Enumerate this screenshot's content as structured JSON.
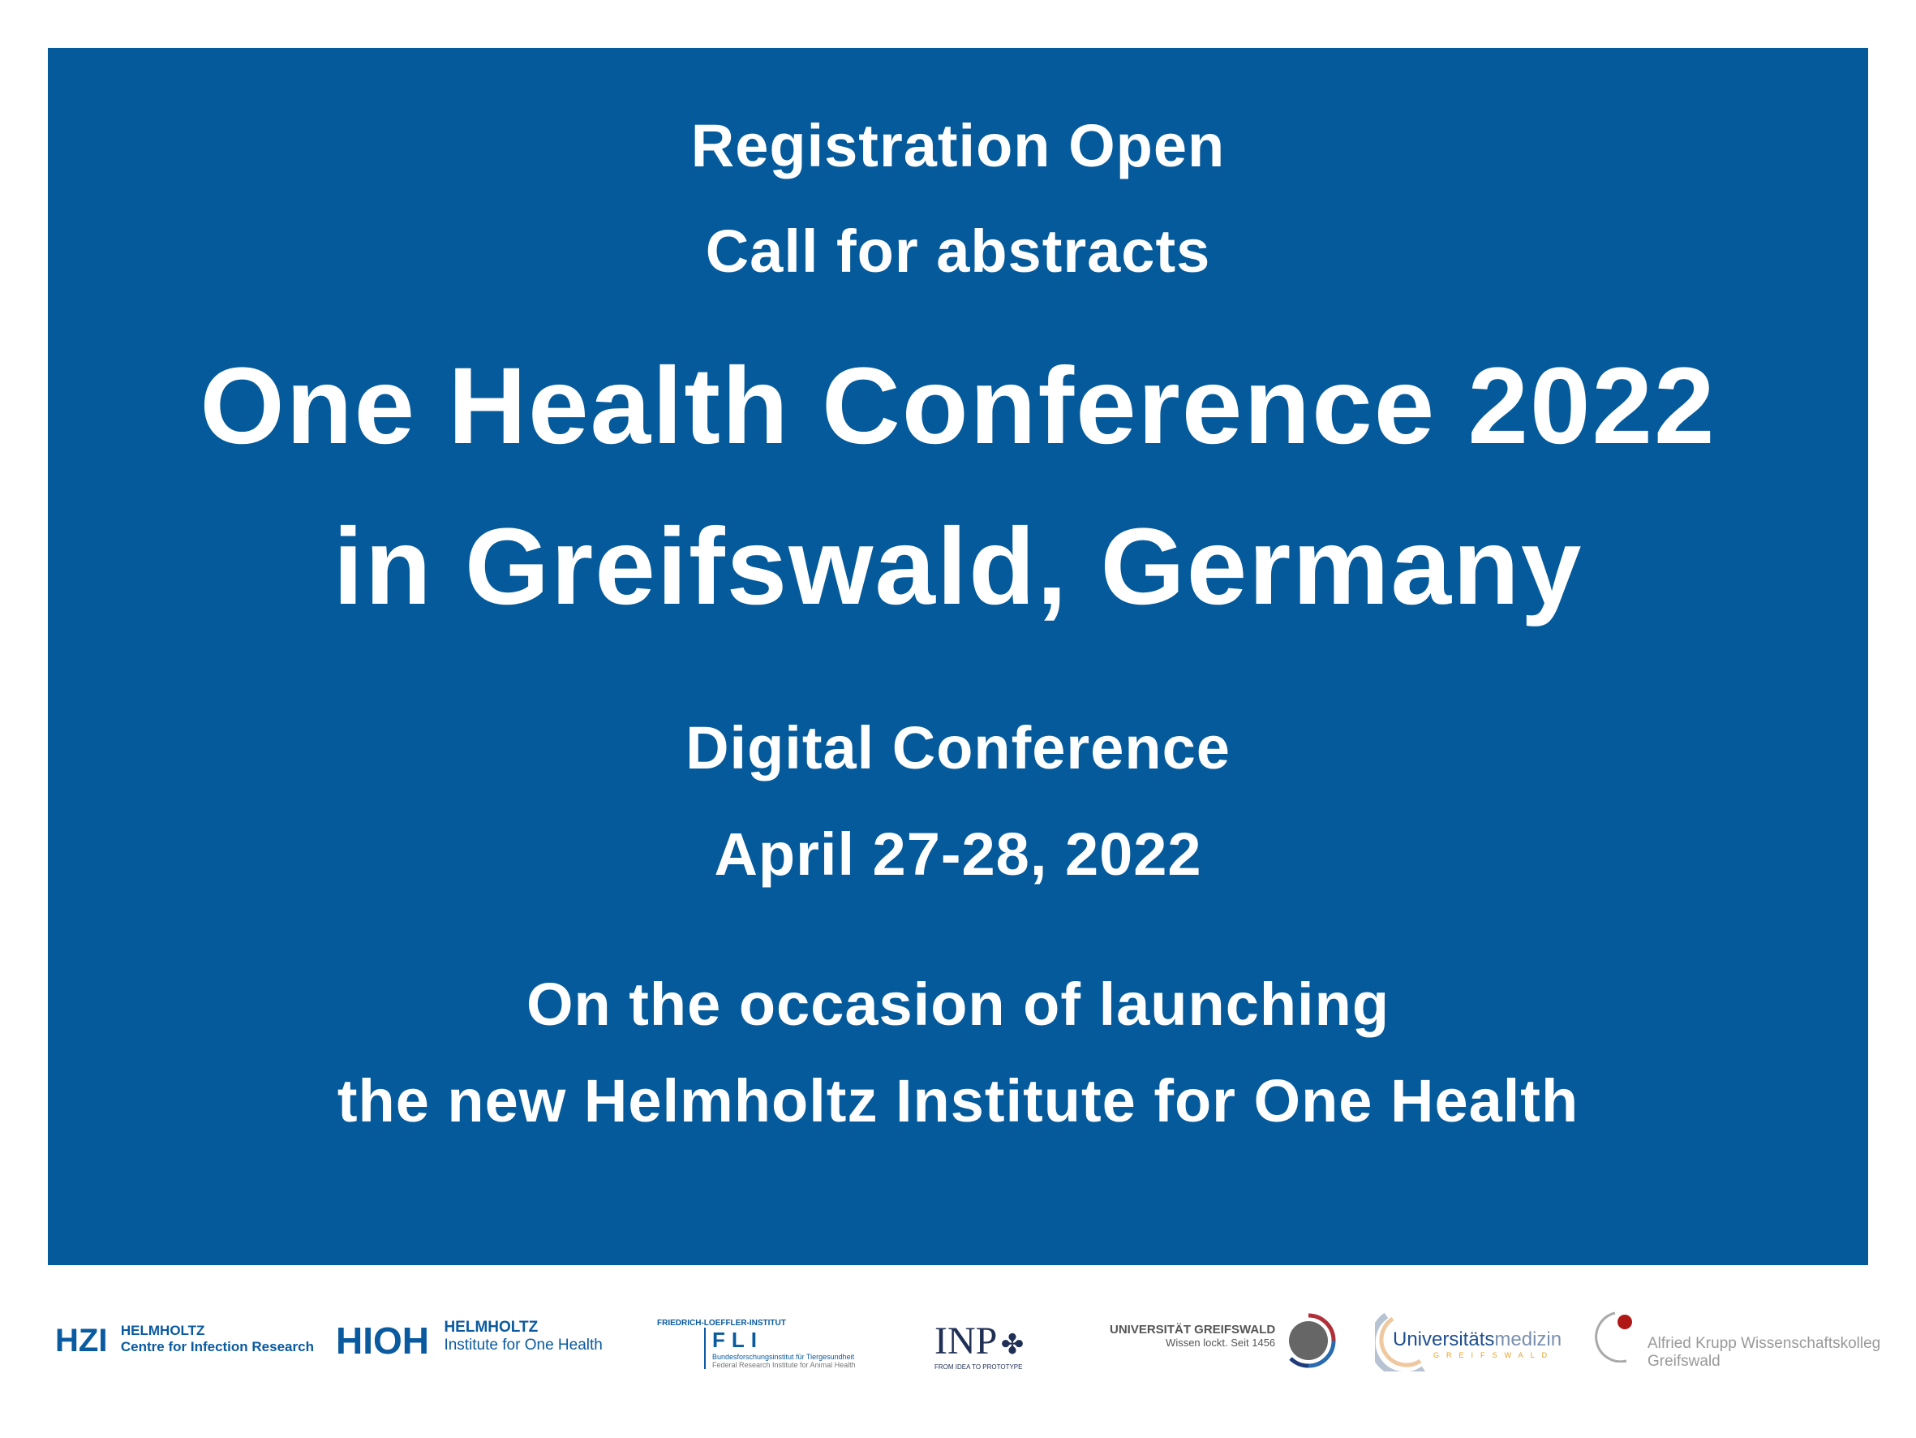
{
  "banner": {
    "background_color": "#045a9b",
    "line1": "Registration Open",
    "line2": "Call for abstracts",
    "title_line1": "One Health Conference 2022",
    "title_line2": "in Greifswald, Germany",
    "format": "Digital Conference",
    "dates": "April 27-28, 2022",
    "occasion_line1": "On the occasion of launching",
    "occasion_line2": "the new Helmholtz Institute for One Health"
  },
  "logos": {
    "hzi": {
      "mark": "HZI",
      "name": "HELMHOLTZ",
      "sub": "Centre for Infection Research"
    },
    "hioh": {
      "mark": "HIOH",
      "name": "HELMHOLTZ",
      "sub": "Institute for One Health"
    },
    "fli": {
      "top": "FRIEDRICH-LOEFFLER-INSTITUT",
      "mark": "FLI",
      "sub_de": "Bundesforschungsinstitut für Tiergesundheit",
      "sub_en": "Federal Research Institute for Animal Health"
    },
    "inp": {
      "mark": "INP",
      "sub": "FROM IDEA TO PROTOTYPE"
    },
    "uni": {
      "name": "UNIVERSITÄT GREIFSWALD",
      "sub": "Wissen lockt. Seit 1456"
    },
    "unimed": {
      "name_a": "Universitäts",
      "name_b": "medizin",
      "sub": "GREIFSWALD"
    },
    "krupp": {
      "name": "Alfried Krupp Wissenschaftskolleg",
      "sub": "Greifswald"
    }
  }
}
